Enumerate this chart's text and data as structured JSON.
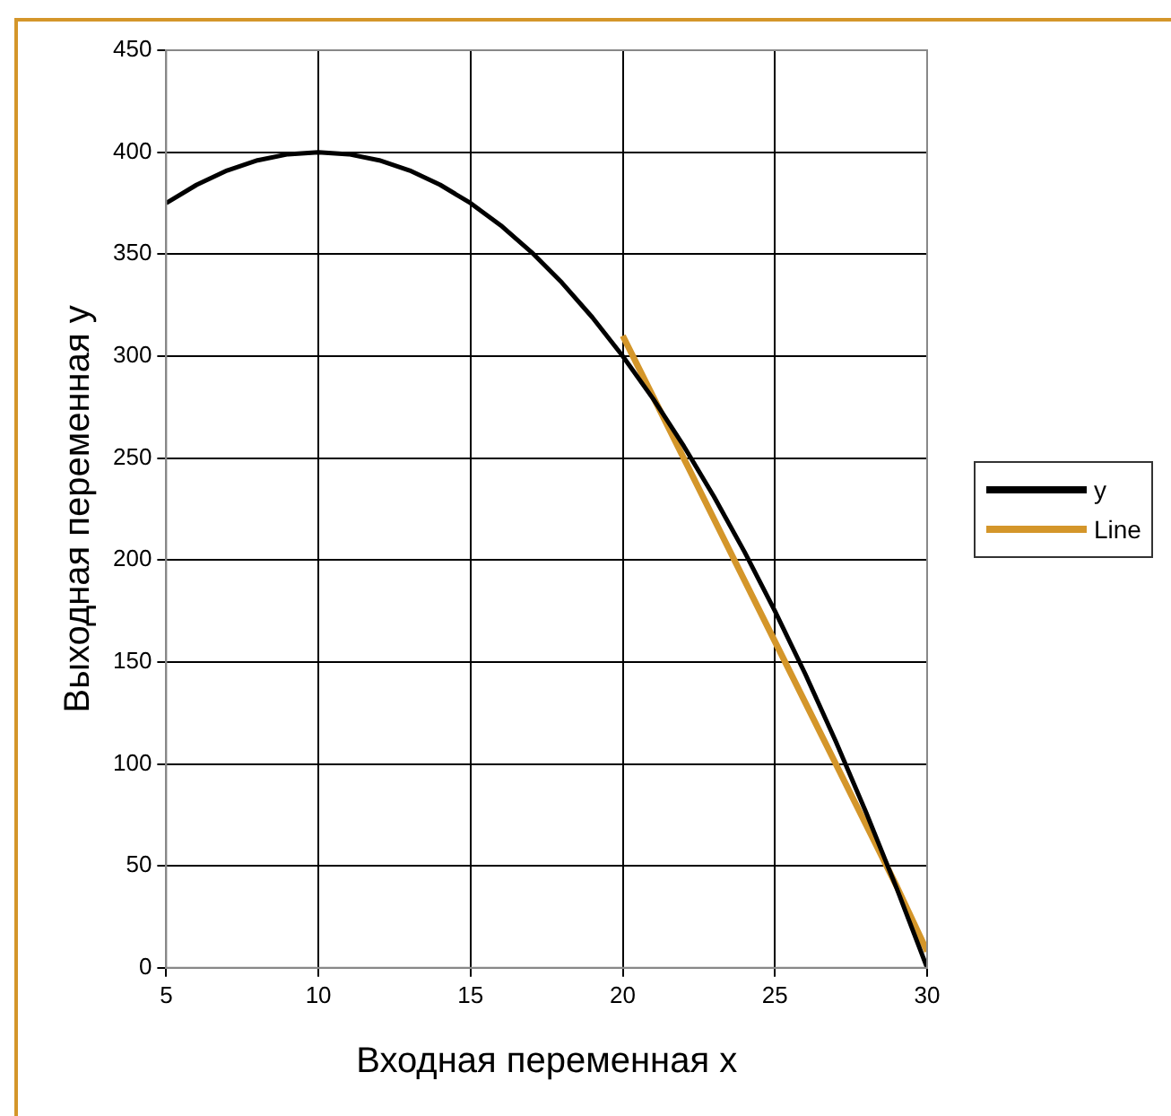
{
  "chart_data": {
    "type": "line",
    "xlabel": "Входная переменная x",
    "ylabel": "Выходная переменная y",
    "xlim": [
      5,
      30
    ],
    "xticks": [
      5,
      10,
      15,
      20,
      25,
      30
    ],
    "ylim": [
      0,
      450
    ],
    "yticks": [
      0,
      50,
      100,
      150,
      200,
      250,
      300,
      350,
      400,
      450
    ],
    "grid": true,
    "legend": "right",
    "marker": "none",
    "line_style": "solid",
    "series": [
      {
        "name": "y",
        "color": "#000000",
        "x": [
          5,
          6,
          7,
          8,
          9,
          10,
          11,
          12,
          13,
          14,
          15,
          16,
          17,
          18,
          19,
          20,
          21,
          22,
          23,
          24,
          25,
          26,
          27,
          28,
          29,
          30
        ],
        "values": [
          375,
          384,
          391,
          396,
          399,
          400,
          399,
          396,
          391,
          384,
          375,
          364,
          351,
          336,
          319,
          300,
          279,
          256,
          231,
          204,
          175,
          144,
          111,
          76,
          39,
          0
        ]
      },
      {
        "name": "Line",
        "color": "#d4962a",
        "x": [
          20,
          21,
          22,
          23,
          24,
          25,
          26,
          27,
          28,
          29,
          30
        ],
        "values": [
          310,
          280,
          250,
          220,
          190,
          160,
          130,
          100,
          70,
          40,
          8
        ]
      }
    ]
  }
}
